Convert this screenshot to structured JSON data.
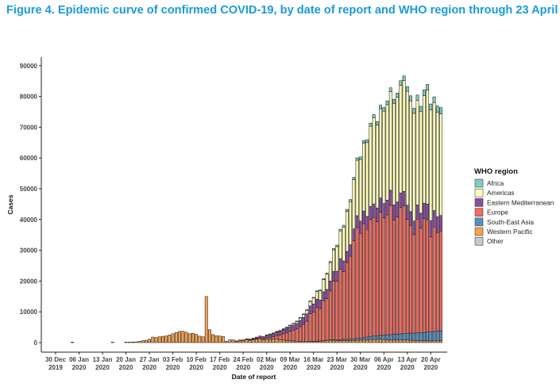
{
  "figure": {
    "title": "Figure 4. Epidemic curve of confirmed COVID-19, by date of report and WHO region through 23 April 2020"
  },
  "chart_data": {
    "type": "bar",
    "stacked": true,
    "xlabel": "Date of report",
    "ylabel": "Cases",
    "ylim": [
      0,
      92000
    ],
    "yticks": [
      0,
      10000,
      20000,
      30000,
      40000,
      50000,
      60000,
      70000,
      80000,
      90000
    ],
    "x_range": [
      "2019-12-30",
      "2020-04-23"
    ],
    "x_ticks": [
      {
        "date": "2019-12-30",
        "line1": "30 Dec",
        "line2": "2019"
      },
      {
        "date": "2020-01-06",
        "line1": "06 Jan",
        "line2": "2020"
      },
      {
        "date": "2020-01-13",
        "line1": "13 Jan",
        "line2": "2020"
      },
      {
        "date": "2020-01-20",
        "line1": "20 Jan",
        "line2": "2020"
      },
      {
        "date": "2020-01-27",
        "line1": "27 Jan",
        "line2": "2020"
      },
      {
        "date": "2020-02-03",
        "line1": "03 Feb",
        "line2": "2020"
      },
      {
        "date": "2020-02-10",
        "line1": "10 Feb",
        "line2": "2020"
      },
      {
        "date": "2020-02-17",
        "line1": "17 Feb",
        "line2": "2020"
      },
      {
        "date": "2020-02-24",
        "line1": "24 Feb",
        "line2": "2020"
      },
      {
        "date": "2020-03-02",
        "line1": "02 Mar",
        "line2": "2020"
      },
      {
        "date": "2020-03-09",
        "line1": "09 Mar",
        "line2": "2020"
      },
      {
        "date": "2020-03-16",
        "line1": "16 Mar",
        "line2": "2020"
      },
      {
        "date": "2020-03-23",
        "line1": "23 Mar",
        "line2": "2020"
      },
      {
        "date": "2020-03-30",
        "line1": "30 Mar",
        "line2": "2020"
      },
      {
        "date": "2020-04-06",
        "line1": "06 Apr",
        "line2": "2020"
      },
      {
        "date": "2020-04-13",
        "line1": "13 Apr",
        "line2": "2020"
      },
      {
        "date": "2020-04-20",
        "line1": "20 Apr",
        "line2": "2020"
      }
    ],
    "legend": {
      "title": "WHO region",
      "position": "right"
    },
    "series_order": [
      "Western Pacific",
      "South-East Asia",
      "Europe",
      "Eastern Mediterranean",
      "Americas",
      "Africa",
      "Other"
    ],
    "series_colors": {
      "Africa": "#7fcdc0",
      "Americas": "#ffffbb",
      "Eastern Mediterranean": "#8a4d9e",
      "Europe": "#f06b5e",
      "South-East Asia": "#5590c4",
      "Western Pacific": "#f5a24b",
      "Other": "#c8c8c8"
    },
    "legend_entries": [
      "Africa",
      "Americas",
      "Eastern Mediterranean",
      "Europe",
      "South-East Asia",
      "Western Pacific",
      "Other"
    ],
    "x": [
      "2020-01-04",
      "2020-01-06",
      "2020-01-08",
      "2020-01-11",
      "2020-01-16",
      "2020-01-20",
      "2020-01-21",
      "2020-01-22",
      "2020-01-23",
      "2020-01-24",
      "2020-01-25",
      "2020-01-26",
      "2020-01-27",
      "2020-01-28",
      "2020-01-29",
      "2020-01-30",
      "2020-01-31",
      "2020-02-01",
      "2020-02-02",
      "2020-02-03",
      "2020-02-04",
      "2020-02-05",
      "2020-02-06",
      "2020-02-07",
      "2020-02-08",
      "2020-02-09",
      "2020-02-10",
      "2020-02-11",
      "2020-02-12",
      "2020-02-13",
      "2020-02-14",
      "2020-02-15",
      "2020-02-16",
      "2020-02-17",
      "2020-02-18",
      "2020-02-19",
      "2020-02-20",
      "2020-02-21",
      "2020-02-22",
      "2020-02-23",
      "2020-02-24",
      "2020-02-25",
      "2020-02-26",
      "2020-02-27",
      "2020-02-28",
      "2020-02-29",
      "2020-03-01",
      "2020-03-02",
      "2020-03-03",
      "2020-03-04",
      "2020-03-05",
      "2020-03-06",
      "2020-03-07",
      "2020-03-08",
      "2020-03-09",
      "2020-03-10",
      "2020-03-11",
      "2020-03-12",
      "2020-03-13",
      "2020-03-14",
      "2020-03-15",
      "2020-03-16",
      "2020-03-17",
      "2020-03-18",
      "2020-03-19",
      "2020-03-20",
      "2020-03-21",
      "2020-03-22",
      "2020-03-23",
      "2020-03-24",
      "2020-03-25",
      "2020-03-26",
      "2020-03-27",
      "2020-03-28",
      "2020-03-29",
      "2020-03-30",
      "2020-03-31",
      "2020-04-01",
      "2020-04-02",
      "2020-04-03",
      "2020-04-04",
      "2020-04-05",
      "2020-04-06",
      "2020-04-07",
      "2020-04-08",
      "2020-04-09",
      "2020-04-10",
      "2020-04-11",
      "2020-04-12",
      "2020-04-13",
      "2020-04-14",
      "2020-04-15",
      "2020-04-16",
      "2020-04-17",
      "2020-04-18",
      "2020-04-19",
      "2020-04-20",
      "2020-04-21",
      "2020-04-22",
      "2020-04-23"
    ],
    "series": [
      {
        "name": "Western Pacific",
        "values": [
          40,
          0,
          0,
          0,
          20,
          140,
          150,
          200,
          260,
          400,
          650,
          750,
          1100,
          1800,
          1650,
          1900,
          2050,
          2150,
          2500,
          2900,
          3300,
          3650,
          3700,
          3400,
          2900,
          3050,
          2700,
          2100,
          1900,
          15000,
          4200,
          2600,
          2250,
          2150,
          2000,
          450,
          900,
          950,
          400,
          700,
          700,
          1000,
          800,
          950,
          1100,
          1250,
          900,
          1050,
          1050,
          1100,
          1100,
          950,
          850,
          700,
          650,
          550,
          450,
          400,
          450,
          450,
          380,
          400,
          380,
          500,
          550,
          700,
          800,
          800,
          700,
          650,
          750,
          700,
          700,
          700,
          750,
          800,
          850,
          900,
          1000,
          1050,
          1050,
          1100,
          1000,
          900,
          900,
          950,
          900,
          850,
          850,
          850,
          800,
          700,
          650,
          650,
          600,
          650,
          550,
          600,
          700,
          600
        ]
      },
      {
        "name": "South-East Asia",
        "values": [
          0,
          0,
          0,
          0,
          0,
          0,
          0,
          0,
          0,
          0,
          0,
          0,
          0,
          0,
          0,
          0,
          0,
          0,
          0,
          0,
          0,
          0,
          0,
          0,
          0,
          0,
          0,
          0,
          0,
          0,
          0,
          0,
          0,
          0,
          0,
          0,
          0,
          0,
          0,
          0,
          0,
          0,
          0,
          0,
          0,
          0,
          0,
          0,
          0,
          0,
          0,
          0,
          0,
          0,
          0,
          0,
          0,
          0,
          0,
          0,
          20,
          30,
          40,
          50,
          60,
          80,
          100,
          120,
          200,
          250,
          300,
          350,
          400,
          450,
          600,
          700,
          800,
          900,
          1000,
          1100,
          1200,
          1300,
          1500,
          1600,
          1700,
          1800,
          1900,
          2000,
          2100,
          2200,
          2300,
          2400,
          2500,
          2600,
          2700,
          2800,
          2900,
          3000,
          3100,
          3200
        ]
      },
      {
        "name": "Europe",
        "values": [
          0,
          0,
          0,
          0,
          0,
          0,
          0,
          0,
          0,
          0,
          0,
          0,
          0,
          0,
          0,
          0,
          0,
          0,
          0,
          0,
          0,
          0,
          0,
          0,
          0,
          0,
          0,
          0,
          0,
          0,
          0,
          0,
          0,
          0,
          0,
          0,
          0,
          0,
          0,
          0,
          20,
          50,
          100,
          150,
          200,
          300,
          400,
          500,
          700,
          900,
          1200,
          1500,
          2000,
          2500,
          3000,
          3500,
          4000,
          4800,
          5500,
          6500,
          9000,
          9500,
          11000,
          10500,
          13000,
          13500,
          16000,
          19000,
          19000,
          23000,
          22000,
          25000,
          27000,
          32000,
          36000,
          34000,
          37000,
          35000,
          38000,
          38500,
          37000,
          40000,
          38000,
          39000,
          42000,
          37000,
          38000,
          41000,
          41500,
          37000,
          35000,
          32000,
          37000,
          34000,
          37000,
          36500,
          31000,
          34000,
          32000,
          32500
        ]
      },
      {
        "name": "Eastern Mediterranean",
        "values": [
          0,
          0,
          0,
          0,
          0,
          0,
          0,
          0,
          0,
          0,
          0,
          0,
          0,
          0,
          0,
          0,
          0,
          0,
          0,
          0,
          0,
          0,
          0,
          0,
          0,
          0,
          0,
          0,
          0,
          0,
          0,
          0,
          0,
          0,
          0,
          0,
          0,
          0,
          20,
          50,
          100,
          200,
          300,
          400,
          500,
          600,
          700,
          800,
          900,
          1000,
          1100,
          1200,
          1300,
          1400,
          1500,
          1600,
          1800,
          2000,
          2200,
          2400,
          2500,
          2600,
          2700,
          2800,
          2900,
          3000,
          3100,
          3200,
          3300,
          3400,
          3500,
          3600,
          3700,
          3800,
          3900,
          4000,
          4100,
          4200,
          4300,
          4400,
          4500,
          4600,
          4700,
          4800,
          4900,
          5000,
          4900,
          4800,
          4700,
          4600,
          4500,
          4400,
          4600,
          4800,
          5000,
          5100,
          5200,
          5300,
          5100,
          5000
        ]
      },
      {
        "name": "Americas",
        "values": [
          0,
          0,
          0,
          0,
          0,
          0,
          0,
          0,
          0,
          0,
          0,
          0,
          0,
          0,
          0,
          0,
          0,
          0,
          0,
          0,
          0,
          0,
          0,
          0,
          0,
          0,
          0,
          0,
          0,
          0,
          0,
          0,
          0,
          0,
          0,
          0,
          0,
          0,
          0,
          0,
          0,
          0,
          0,
          0,
          0,
          0,
          0,
          20,
          50,
          80,
          100,
          150,
          200,
          300,
          400,
          500,
          600,
          800,
          1000,
          1200,
          1500,
          2000,
          2500,
          3000,
          4000,
          5000,
          6000,
          7000,
          8000,
          9000,
          11000,
          13000,
          14000,
          16000,
          18000,
          20000,
          22000,
          24000,
          26000,
          28000,
          27000,
          29000,
          30000,
          31000,
          32000,
          33000,
          34000,
          35000,
          36000,
          37000,
          36000,
          35000,
          34000,
          33000,
          35000,
          37000,
          36000,
          35000,
          34000,
          33000
        ]
      },
      {
        "name": "Africa",
        "values": [
          0,
          0,
          0,
          0,
          0,
          0,
          0,
          0,
          0,
          0,
          0,
          0,
          0,
          0,
          0,
          0,
          0,
          0,
          0,
          0,
          0,
          0,
          0,
          0,
          0,
          0,
          0,
          0,
          0,
          0,
          0,
          0,
          0,
          0,
          0,
          0,
          0,
          0,
          0,
          0,
          0,
          0,
          0,
          0,
          0,
          0,
          0,
          0,
          0,
          0,
          10,
          20,
          20,
          30,
          40,
          50,
          60,
          80,
          100,
          120,
          150,
          180,
          200,
          250,
          300,
          350,
          400,
          450,
          500,
          550,
          600,
          650,
          700,
          750,
          800,
          850,
          900,
          950,
          1000,
          1050,
          1100,
          1150,
          1200,
          1250,
          1300,
          1350,
          1400,
          1450,
          1500,
          1550,
          1600,
          1650,
          1700,
          1750,
          1800,
          1850,
          1900,
          1950,
          2000,
          2050
        ]
      },
      {
        "name": "Other",
        "values": [
          0,
          0,
          0,
          0,
          0,
          0,
          0,
          0,
          0,
          0,
          0,
          0,
          0,
          0,
          0,
          0,
          0,
          0,
          0,
          0,
          0,
          0,
          0,
          0,
          0,
          0,
          0,
          0,
          0,
          0,
          0,
          0,
          0,
          0,
          0,
          0,
          0,
          0,
          0,
          0,
          0,
          0,
          0,
          0,
          0,
          0,
          0,
          0,
          0,
          0,
          0,
          0,
          0,
          0,
          0,
          0,
          0,
          0,
          0,
          0,
          0,
          0,
          0,
          0,
          0,
          0,
          0,
          0,
          0,
          0,
          0,
          0,
          0,
          0,
          0,
          0,
          0,
          0,
          0,
          0,
          0,
          0,
          0,
          0,
          0,
          0,
          0,
          0,
          0,
          0,
          0,
          0,
          0,
          0,
          0,
          0,
          0,
          0,
          0,
          0
        ]
      }
    ]
  }
}
